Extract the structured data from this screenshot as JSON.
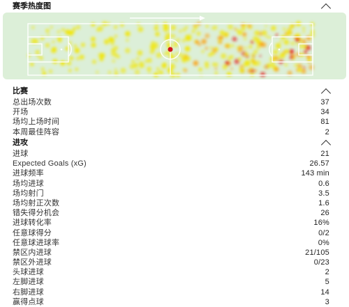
{
  "heatmap": {
    "title": "赛季热度图"
  },
  "match": {
    "title": "比赛",
    "rows": [
      {
        "label": "总出场次数",
        "value": "37"
      },
      {
        "label": "开场",
        "value": "34"
      },
      {
        "label": "场均上场时间",
        "value": "81"
      },
      {
        "label": "本周最佳阵容",
        "value": "2"
      }
    ]
  },
  "attack": {
    "title": "进攻",
    "rows": [
      {
        "label": "进球",
        "value": "21"
      },
      {
        "label": "Expected Goals (xG)",
        "value": "26.57"
      },
      {
        "label": "进球频率",
        "value": "143 min"
      },
      {
        "label": "场均进球",
        "value": "0.6"
      },
      {
        "label": "场均射门",
        "value": "3.5"
      },
      {
        "label": "场均射正次数",
        "value": "1.6"
      },
      {
        "label": "错失得分机会",
        "value": "26"
      },
      {
        "label": "进球转化率",
        "value": "16%"
      },
      {
        "label": "任意球得分",
        "value": "0/2"
      },
      {
        "label": "任意球进球率",
        "value": "0%"
      },
      {
        "label": "禁区内进球",
        "value": "21/105"
      },
      {
        "label": "禁区外进球",
        "value": "0/23"
      },
      {
        "label": "头球进球",
        "value": "2"
      },
      {
        "label": "左脚进球",
        "value": "5"
      },
      {
        "label": "右脚进球",
        "value": "14"
      },
      {
        "label": "赢得点球",
        "value": "3"
      }
    ]
  },
  "colors": {
    "pitch": "#dcefd8",
    "heat_low": "#f2e600",
    "heat_mid": "#ff9a00",
    "heat_high": "#e41a1a"
  }
}
